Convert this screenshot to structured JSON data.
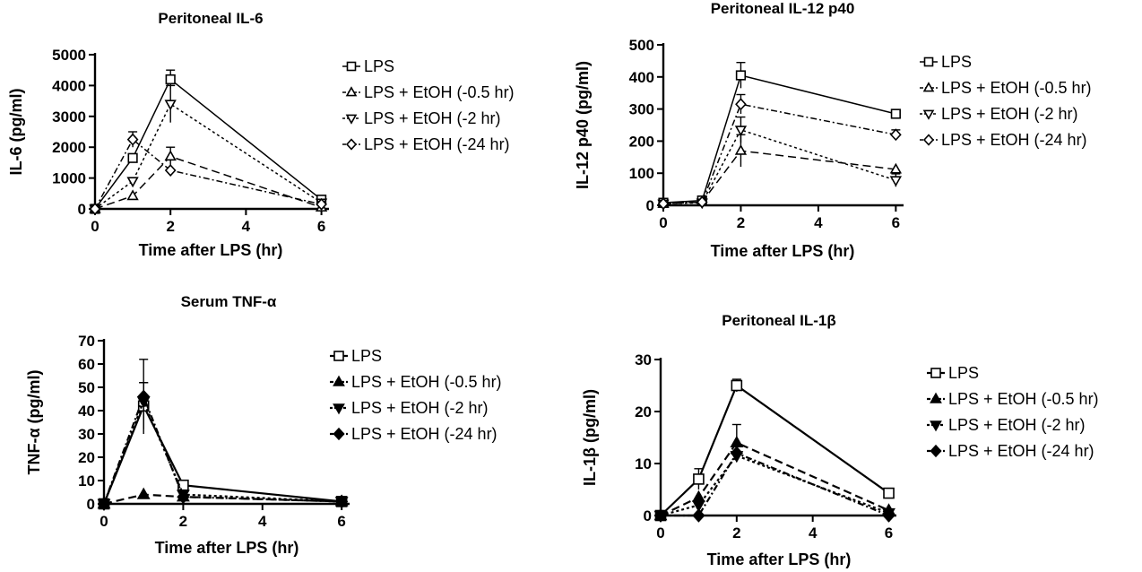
{
  "chart_data": [
    {
      "type": "line",
      "title": "Peritoneal IL-6",
      "xlabel": "Time after LPS (hr)",
      "ylabel": "IL-6 (pg/ml)",
      "xlim": [
        0,
        6.2
      ],
      "ylim": [
        0,
        5000
      ],
      "xticks": [
        "0",
        "2",
        "4",
        "6"
      ],
      "yticks": [
        "0",
        "1000",
        "2000",
        "3000",
        "4000",
        "5000"
      ],
      "series": [
        {
          "name": "LPS",
          "marker": "square",
          "dash": "solid",
          "filled": false,
          "x": [
            0,
            1,
            2,
            6
          ],
          "y": [
            0,
            1650,
            4200,
            300
          ],
          "err": [
            0,
            0,
            300,
            0
          ]
        },
        {
          "name": "LPS + EtOH (-0.5 hr)",
          "marker": "triangle-up",
          "dash": "long",
          "filled": false,
          "x": [
            0,
            1,
            2,
            6
          ],
          "y": [
            0,
            420,
            1700,
            50
          ],
          "err": [
            0,
            0,
            300,
            0
          ]
        },
        {
          "name": "LPS + EtOH (-2 hr)",
          "marker": "triangle-down",
          "dash": "short",
          "filled": false,
          "x": [
            0,
            1,
            2,
            6
          ],
          "y": [
            0,
            900,
            3400,
            200
          ],
          "err": [
            0,
            0,
            600,
            0
          ]
        },
        {
          "name": "LPS + EtOH (-24 hr)",
          "marker": "diamond",
          "dash": "dashdot",
          "filled": false,
          "x": [
            0,
            1,
            2,
            6
          ],
          "y": [
            0,
            2250,
            1250,
            150
          ],
          "err": [
            0,
            250,
            0,
            0
          ]
        }
      ]
    },
    {
      "type": "line",
      "title": "Peritoneal IL-12 p40",
      "xlabel": "Time after LPS (hr)",
      "ylabel": "IL-12 p40 (pg/ml)",
      "xlim": [
        0,
        6.2
      ],
      "ylim": [
        0,
        500
      ],
      "xticks": [
        "0",
        "2",
        "4",
        "6"
      ],
      "yticks": [
        "0",
        "100",
        "200",
        "300",
        "400",
        "500"
      ],
      "series": [
        {
          "name": "LPS",
          "marker": "square",
          "dash": "solid",
          "filled": false,
          "x": [
            0,
            1,
            2,
            6
          ],
          "y": [
            8,
            15,
            405,
            285
          ],
          "err": [
            0,
            0,
            40,
            0
          ]
        },
        {
          "name": "LPS + EtOH (-0.5 hr)",
          "marker": "triangle-up",
          "dash": "long",
          "filled": false,
          "x": [
            0,
            1,
            2,
            6
          ],
          "y": [
            5,
            10,
            170,
            112
          ],
          "err": [
            0,
            0,
            50,
            0
          ]
        },
        {
          "name": "LPS + EtOH (-2 hr)",
          "marker": "triangle-down",
          "dash": "short",
          "filled": false,
          "x": [
            0,
            1,
            2,
            6
          ],
          "y": [
            5,
            8,
            235,
            78
          ],
          "err": [
            0,
            0,
            40,
            20
          ]
        },
        {
          "name": "LPS + EtOH (-24 hr)",
          "marker": "diamond",
          "dash": "dashdot",
          "filled": false,
          "x": [
            0,
            1,
            2,
            6
          ],
          "y": [
            5,
            10,
            315,
            220
          ],
          "err": [
            0,
            0,
            30,
            15
          ]
        }
      ]
    },
    {
      "type": "line",
      "title": "Serum TNF-α",
      "xlabel": "Time after LPS (hr)",
      "ylabel": "TNF-α (pg/ml)",
      "xlim": [
        0,
        6.2
      ],
      "ylim": [
        0,
        70
      ],
      "xticks": [
        "0",
        "2",
        "4",
        "6"
      ],
      "yticks": [
        "0",
        "10",
        "20",
        "30",
        "40",
        "50",
        "60",
        "70"
      ],
      "series": [
        {
          "name": "LPS",
          "marker": "square",
          "dash": "solid",
          "filled": false,
          "x": [
            0,
            1,
            2,
            6
          ],
          "y": [
            0,
            42,
            8,
            1
          ],
          "err": [
            0,
            10,
            0,
            0
          ]
        },
        {
          "name": "LPS + EtOH (-0.5 hr)",
          "marker": "triangle-up",
          "dash": "long",
          "filled": true,
          "x": [
            0,
            1,
            2,
            6
          ],
          "y": [
            0,
            4,
            3,
            1
          ],
          "err": [
            0,
            0,
            0,
            0
          ]
        },
        {
          "name": "LPS + EtOH (-2 hr)",
          "marker": "triangle-down",
          "dash": "short",
          "filled": true,
          "x": [
            0,
            1,
            2,
            6
          ],
          "y": [
            0,
            44,
            4,
            1
          ],
          "err": [
            0,
            8,
            0,
            0
          ]
        },
        {
          "name": "LPS + EtOH (-24 hr)",
          "marker": "diamond",
          "dash": "dashdot",
          "filled": true,
          "x": [
            0,
            1,
            2,
            6
          ],
          "y": [
            0,
            46,
            3,
            1
          ],
          "err": [
            0,
            16,
            0,
            0
          ]
        }
      ]
    },
    {
      "type": "line",
      "title": "Peritoneal IL-1β",
      "xlabel": "Time after LPS (hr)",
      "ylabel": "IL-1β (pg/ml)",
      "xlim": [
        0,
        6.2
      ],
      "ylim": [
        0,
        30
      ],
      "xticks": [
        "0",
        "2",
        "4",
        "6"
      ],
      "yticks": [
        "0",
        "10",
        "20",
        "30"
      ],
      "series": [
        {
          "name": "LPS",
          "marker": "square",
          "dash": "solid",
          "filled": false,
          "x": [
            0,
            1,
            2,
            6
          ],
          "y": [
            0,
            7,
            25,
            4.3
          ],
          "err": [
            0,
            2,
            1.2,
            0.7
          ]
        },
        {
          "name": "LPS + EtOH (-0.5 hr)",
          "marker": "triangle-up",
          "dash": "long",
          "filled": true,
          "x": [
            0,
            1,
            2,
            6
          ],
          "y": [
            0,
            3.5,
            14,
            1
          ],
          "err": [
            0,
            0,
            3.5,
            0
          ]
        },
        {
          "name": "LPS + EtOH (-2 hr)",
          "marker": "triangle-down",
          "dash": "short",
          "filled": true,
          "x": [
            0,
            1,
            2,
            6
          ],
          "y": [
            0,
            2,
            11.5,
            0.5
          ],
          "err": [
            0,
            0,
            0,
            0
          ]
        },
        {
          "name": "LPS + EtOH (-24 hr)",
          "marker": "diamond",
          "dash": "dashdot",
          "filled": true,
          "x": [
            0,
            1,
            2,
            6
          ],
          "y": [
            0,
            0,
            12,
            0
          ],
          "err": [
            0,
            0,
            0,
            0
          ]
        }
      ]
    }
  ]
}
